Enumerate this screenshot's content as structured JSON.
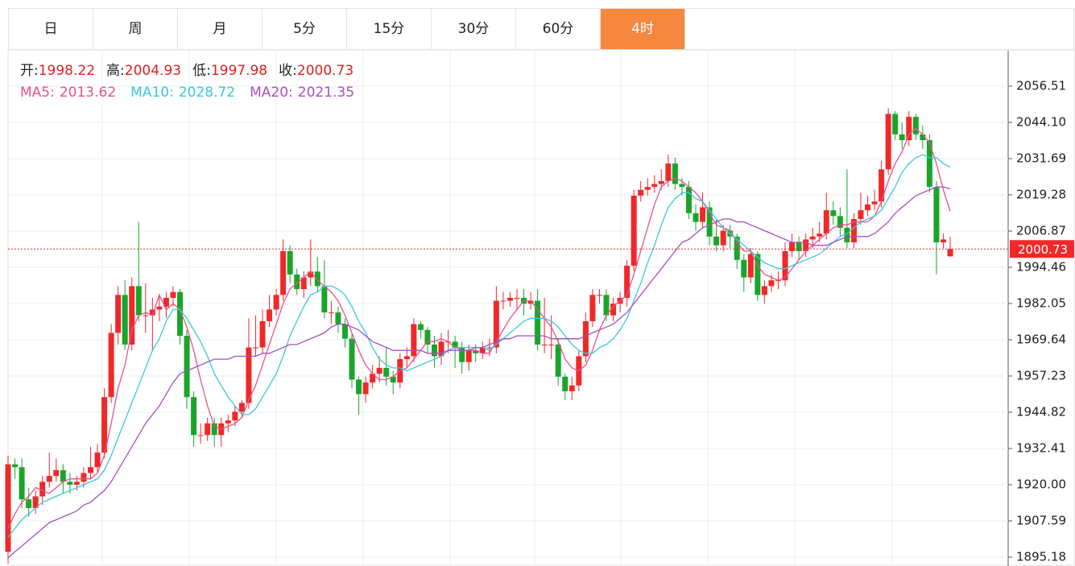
{
  "tabs": {
    "items": [
      "日",
      "周",
      "月",
      "5分",
      "15分",
      "30分",
      "60分",
      "4时"
    ],
    "active": 7
  },
  "header": {
    "open": "开:",
    "high": "高:",
    "low": "低:",
    "close": "收:"
  },
  "chart_data": {
    "type": "candlestick",
    "up_color": "#f0282a",
    "down_color": "#1aa52a",
    "ylim": [
      1892.15,
      2068.64
    ],
    "yticks": [
      2056.51,
      {
        "value": 2044.1,
        "label": "2044.10"
      },
      2031.69,
      2019.28,
      2006.87,
      1994.46,
      1982.05,
      1969.64,
      1957.23,
      1944.82,
      1932.41,
      {
        "value": 1920,
        "label": "1920.00"
      },
      1907.59,
      1895.18
    ],
    "grid": true,
    "open": [
      1897,
      1927,
      1926,
      1915,
      1912,
      1916,
      1921,
      1923,
      1925,
      1921,
      1920,
      1921,
      1924,
      1926,
      1931,
      1950,
      1972,
      1985,
      1968,
      1988,
      1978,
      1978,
      1980,
      1981,
      1984,
      1986,
      1971,
      1950,
      1937,
      1937,
      1941,
      1937,
      1941,
      1942,
      1945,
      1948,
      1967,
      1967,
      1976,
      1980,
      1985,
      2000,
      1992,
      1987,
      1991,
      1993,
      1988,
      1979,
      1979,
      1975,
      1970,
      1956,
      1951,
      1955,
      1958,
      1960,
      1957,
      1955,
      1963,
      1964,
      1975,
      1973,
      1968,
      1964,
      1969,
      1969,
      1967,
      1962,
      1966,
      1965,
      1967,
      1967,
      1983,
      1983,
      1984,
      1984,
      1982,
      1983,
      1968,
      1968,
      1968,
      1957,
      1952,
      1954,
      1964,
      1976,
      1985,
      1985,
      1978,
      1982,
      1984,
      1995,
      2019,
      2021,
      2022,
      2023,
      2024,
      2030,
      2023,
      2022,
      2013,
      2010,
      2015,
      2005,
      2002,
      2007,
      2005,
      1997,
      1991,
      1999,
      1985,
      1988,
      1990,
      1990,
      2000,
      2003,
      2000,
      2004,
      2005,
      2006,
      2014,
      2012,
      2008,
      2003,
      2011,
      2014,
      2016,
      2017,
      2028,
      2047,
      2040,
      2038,
      2046,
      2040,
      2038,
      2022,
      2003,
      1998.22
    ],
    "high": [
      1930,
      1929,
      1929,
      1919,
      1918,
      1923,
      1931,
      1929,
      1927,
      1924,
      1923,
      1926,
      1933,
      1934,
      1953,
      1975,
      1988,
      1990,
      1991,
      2010,
      1989,
      1984,
      1985,
      1986,
      1988,
      1987,
      1973,
      1952,
      1941,
      1943,
      1943,
      1943,
      1944,
      1947,
      1949,
      1977,
      1978,
      1980,
      1985,
      1987,
      2004,
      2002,
      1994,
      1993,
      2004,
      1998,
      1997,
      1983,
      1981,
      1977,
      1972,
      1957,
      1957,
      1961,
      1964,
      1967,
      1959,
      1965,
      1967,
      1977,
      1976,
      1974,
      1971,
      1972,
      1973,
      1971,
      1969,
      1968,
      1968,
      1969,
      1970,
      1988,
      1986,
      1986,
      1987,
      1987,
      1986,
      1987,
      1984,
      1978,
      1970,
      1958,
      1957,
      1966,
      1979,
      1987,
      1987,
      1987,
      1984,
      1986,
      1997,
      2021,
      2024,
      2025,
      2026,
      2028,
      2033,
      2032,
      2025,
      2024,
      2016,
      2020,
      2017,
      2011,
      2009,
      2009,
      2006,
      1999,
      2001,
      2000,
      1990,
      1992,
      1993,
      2003,
      2006,
      2005,
      2006,
      2008,
      2010,
      2020,
      2017,
      2015,
      2028,
      2013,
      2020,
      2019,
      2021,
      2031,
      2049,
      2048,
      2044,
      2048,
      2047,
      2043,
      2040,
      2024,
      2006,
      2004.93
    ],
    "low": [
      1893,
      1922,
      1912,
      1909,
      1910,
      1913,
      1919,
      1921,
      1917,
      1917,
      1918,
      1919,
      1922,
      1924,
      1929,
      1948,
      1968,
      1966,
      1966,
      1976,
      1972,
      1966,
      1976,
      1977,
      1981,
      1968,
      1946,
      1933,
      1934,
      1935,
      1933,
      1933,
      1938,
      1940,
      1943,
      1946,
      1964,
      1965,
      1974,
      1978,
      1983,
      1989,
      1985,
      1984,
      1988,
      1986,
      1977,
      1975,
      1972,
      1967,
      1953,
      1944,
      1948,
      1953,
      1955,
      1954,
      1951,
      1953,
      1960,
      1962,
      1970,
      1965,
      1960,
      1961,
      1965,
      1960,
      1958,
      1959,
      1962,
      1963,
      1964,
      1965,
      1980,
      1981,
      1980,
      1978,
      1980,
      1966,
      1965,
      1963,
      1954,
      1949,
      1949,
      1952,
      1962,
      1974,
      1982,
      1976,
      1976,
      1979,
      1981,
      1993,
      2017,
      2019,
      2020,
      2021,
      2022,
      2021,
      2019,
      2011,
      2007,
      2008,
      2002,
      2000,
      2000,
      2001,
      1994,
      1986,
      1989,
      1983,
      1982,
      1986,
      1987,
      1988,
      1998,
      1997,
      1998,
      2001,
      2003,
      2004,
      2009,
      2005,
      2001,
      2001,
      2009,
      2012,
      2014,
      2015,
      2026,
      2038,
      2035,
      2036,
      2038,
      2035,
      2020,
      1992,
      2001,
      1997.98
    ],
    "close": [
      1927,
      1926,
      1915,
      1912,
      1916,
      1921,
      1923,
      1925,
      1921,
      1920,
      1921,
      1924,
      1926,
      1931,
      1950,
      1972,
      1985,
      1968,
      1988,
      1978,
      1978,
      1980,
      1981,
      1984,
      1986,
      1971,
      1950,
      1937,
      1937,
      1941,
      1937,
      1941,
      1942,
      1945,
      1948,
      1967,
      1967,
      1976,
      1980,
      1985,
      2000,
      1992,
      1987,
      1991,
      1993,
      1988,
      1979,
      1979,
      1975,
      1970,
      1956,
      1951,
      1955,
      1958,
      1960,
      1957,
      1955,
      1963,
      1964,
      1975,
      1973,
      1968,
      1964,
      1969,
      1969,
      1967,
      1962,
      1966,
      1965,
      1967,
      1967,
      1983,
      1983,
      1984,
      1984,
      1982,
      1983,
      1968,
      1968,
      1968,
      1957,
      1952,
      1954,
      1964,
      1976,
      1985,
      1985,
      1978,
      1982,
      1984,
      1995,
      2019,
      2021,
      2022,
      2023,
      2024,
      2030,
      2023,
      2022,
      2013,
      2010,
      2015,
      2005,
      2002,
      2007,
      2005,
      1997,
      1991,
      1999,
      1985,
      1988,
      1990,
      1990,
      2000,
      2003,
      2000,
      2004,
      2005,
      2006,
      2014,
      2012,
      2008,
      2003,
      2011,
      2014,
      2016,
      2017,
      2028,
      2047,
      2040,
      2038,
      2046,
      2040,
      2038,
      2022,
      2003,
      2004,
      2000.73
    ],
    "series": [
      {
        "name": "MA5:",
        "color": "#e8528a",
        "values": [
          1905,
          1910,
          1914,
          1916,
          1919,
          1918,
          1917,
          1919,
          1921,
          1922,
          1922,
          1922,
          1922,
          1924,
          1930,
          1941,
          1953,
          1961,
          1973,
          1978,
          1979,
          1978,
          1985,
          1980,
          1982,
          1980,
          1974,
          1966,
          1956,
          1947,
          1940,
          1939,
          1940,
          1941,
          1943,
          1949,
          1954,
          1961,
          1968,
          1975,
          1982,
          1987,
          1989,
          1991,
          1993,
          1990,
          1988,
          1986,
          1983,
          1978,
          1972,
          1966,
          1961,
          1958,
          1956,
          1956,
          1957,
          1959,
          1960,
          1963,
          1966,
          1969,
          1969,
          1970,
          1969,
          1967,
          1966,
          1966,
          1966,
          1965,
          1965,
          1969,
          1973,
          1977,
          1980,
          1983,
          1983,
          1980,
          1977,
          1974,
          1969,
          1963,
          1960,
          1959,
          1961,
          1966,
          1973,
          1978,
          1981,
          1983,
          1985,
          1992,
          2000,
          2008,
          2016,
          2022,
          2024,
          2025,
          2024,
          2022,
          2020,
          2017,
          2013,
          2009,
          2008,
          2007,
          2003,
          2000,
          2000,
          1995,
          1992,
          1991,
          1990,
          1991,
          1994,
          1997,
          2000,
          2002,
          2004,
          2006,
          2008,
          2009,
          2009,
          2010,
          2010,
          2010,
          2012,
          2017,
          2024,
          2030,
          2034,
          2040,
          2042,
          2040,
          2037,
          2030,
          2021,
          2013.62
        ]
      },
      {
        "name": "MA10:",
        "color": "#3cc8d8",
        "values": [
          1902,
          1905,
          1908,
          1910,
          1912,
          1914,
          1915,
          1916,
          1917,
          1918,
          1919,
          1920,
          1921,
          1922,
          1925,
          1930,
          1936,
          1942,
          1948,
          1954,
          1960,
          1966,
          1970,
          1976,
          1980,
          1980,
          1977,
          1973,
          1969,
          1964,
          1958,
          1954,
          1950,
          1947,
          1944,
          1944,
          1946,
          1950,
          1954,
          1958,
          1964,
          1971,
          1976,
          1981,
          1985,
          1986,
          1988,
          1988,
          1987,
          1985,
          1981,
          1976,
          1972,
          1967,
          1963,
          1961,
          1960,
          1960,
          1959,
          1960,
          1961,
          1962,
          1963,
          1964,
          1966,
          1967,
          1967,
          1967,
          1967,
          1967,
          1966,
          1968,
          1970,
          1972,
          1974,
          1976,
          1977,
          1977,
          1977,
          1976,
          1974,
          1971,
          1968,
          1966,
          1965,
          1965,
          1967,
          1968,
          1970,
          1973,
          1977,
          1983,
          1989,
          1996,
          2002,
          2009,
          2015,
          2018,
          2020,
          2020,
          2018,
          2017,
          2014,
          2011,
          2008,
          2006,
          2004,
          2002,
          2000,
          1998,
          1996,
          1995,
          1994,
          1994,
          1995,
          1996,
          1997,
          1998,
          1999,
          2001,
          2003,
          2005,
          2006,
          2008,
          2010,
          2011,
          2012,
          2014,
          2018,
          2022,
          2027,
          2030,
          2032,
          2033,
          2032,
          2032,
          2030,
          2028.72
        ]
      },
      {
        "name": "MA20:",
        "color": "#a84ec0",
        "values": [
          1895,
          1897,
          1899,
          1901,
          1903,
          1905,
          1907,
          1908,
          1909,
          1910,
          1911,
          1913,
          1914,
          1916,
          1918,
          1921,
          1925,
          1929,
          1933,
          1937,
          1941,
          1944,
          1947,
          1951,
          1955,
          1958,
          1959,
          1960,
          1961,
          1962,
          1963,
          1963,
          1963,
          1964,
          1964,
          1964,
          1964,
          1965,
          1965,
          1966,
          1967,
          1968,
          1968,
          1969,
          1970,
          1971,
          1972,
          1974,
          1975,
          1975,
          1974,
          1973,
          1971,
          1969,
          1968,
          1967,
          1966,
          1966,
          1966,
          1966,
          1966,
          1965,
          1965,
          1965,
          1966,
          1966,
          1966,
          1966,
          1967,
          1967,
          1968,
          1969,
          1970,
          1970,
          1971,
          1971,
          1971,
          1971,
          1971,
          1970,
          1970,
          1970,
          1970,
          1970,
          1971,
          1972,
          1973,
          1974,
          1975,
          1977,
          1979,
          1982,
          1985,
          1988,
          1991,
          1994,
          1997,
          2000,
          2003,
          2004,
          2006,
          2008,
          2009,
          2010,
          2011,
          2011,
          2010,
          2010,
          2009,
          2008,
          2007,
          2006,
          2005,
          2004,
          2003,
          2003,
          2003,
          2002,
          2002,
          2002,
          2003,
          2004,
          2005,
          2005,
          2005,
          2005,
          2006,
          2008,
          2010,
          2013,
          2015,
          2017,
          2019,
          2020,
          2021,
          2022,
          2022,
          2021.35
        ]
      }
    ]
  }
}
